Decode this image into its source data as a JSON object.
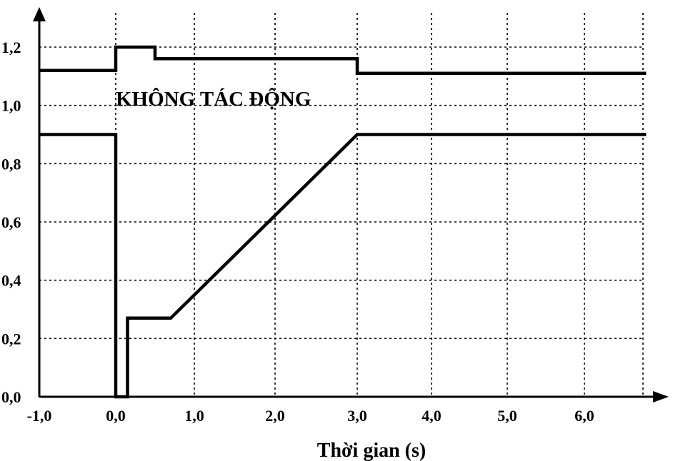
{
  "chart_data": {
    "type": "line",
    "title": "",
    "xlabel": "Thời gian (s)",
    "ylabel": "",
    "xlim": [
      -1.0,
      6.8
    ],
    "ylim": [
      0.0,
      1.2
    ],
    "grid": true,
    "x_ticks": [
      -1.0,
      0.0,
      1.0,
      2.0,
      3.0,
      4.0,
      5.0,
      6.0
    ],
    "x_tick_labels": [
      "-1,0",
      "0,0",
      "1,0",
      "2,0",
      "3,0",
      "4,0",
      "5,0",
      "6,0"
    ],
    "y_ticks": [
      0.0,
      0.2,
      0.4,
      0.6,
      0.8,
      1.0,
      1.2
    ],
    "y_tick_labels": [
      "0,0",
      "0,2",
      "0,4",
      "0,6",
      "0,8",
      "1,0",
      "1,2"
    ],
    "annotation": "KHÔNG TÁC ĐỘNG",
    "series": [
      {
        "x": [
          -1.0,
          0.0,
          0.0,
          0.5,
          0.5,
          3.0,
          3.0,
          6.8
        ],
        "y": [
          1.12,
          1.12,
          1.2,
          1.2,
          1.16,
          1.16,
          1.11,
          1.11
        ]
      },
      {
        "x": [
          -1.0,
          0.0,
          0.0,
          0.15,
          0.15,
          0.7,
          3.0,
          6.8
        ],
        "y": [
          0.9,
          0.9,
          0.0,
          0.0,
          0.27,
          0.27,
          0.9,
          0.9
        ]
      }
    ]
  }
}
